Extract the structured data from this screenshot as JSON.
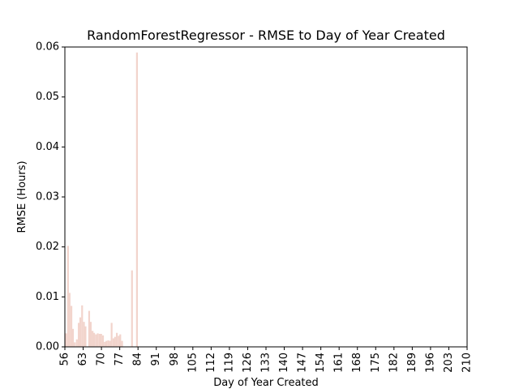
{
  "chart_data": {
    "type": "bar",
    "title": "RandomForestRegressor - RMSE to Day of Year Created",
    "xlabel": "Day of Year Created",
    "ylabel": "RMSE (Hours)",
    "xlim": [
      56,
      210
    ],
    "ylim": [
      0,
      0.06
    ],
    "x_ticks": [
      56,
      63,
      70,
      77,
      84,
      91,
      98,
      105,
      112,
      119,
      126,
      133,
      140,
      147,
      154,
      161,
      168,
      175,
      182,
      189,
      196,
      203,
      210
    ],
    "y_ticks": [
      0.0,
      0.01,
      0.02,
      0.03,
      0.04,
      0.05,
      0.06
    ],
    "y_tick_labels": [
      "0.00",
      "0.01",
      "0.02",
      "0.03",
      "0.04",
      "0.05",
      "0.06"
    ],
    "bar_color": "#f2d4cc",
    "grid": false,
    "bars": [
      {
        "x": 56.5,
        "y": 0.0027
      },
      {
        "x": 57.2,
        "y": 0.0202
      },
      {
        "x": 57.8,
        "y": 0.0108
      },
      {
        "x": 58.5,
        "y": 0.0082
      },
      {
        "x": 59.1,
        "y": 0.0036
      },
      {
        "x": 59.8,
        "y": 0.0009
      },
      {
        "x": 60.6,
        "y": 0.0015
      },
      {
        "x": 61.3,
        "y": 0.0048
      },
      {
        "x": 61.9,
        "y": 0.0059
      },
      {
        "x": 62.6,
        "y": 0.0083
      },
      {
        "x": 63.3,
        "y": 0.005
      },
      {
        "x": 63.9,
        "y": 0.0041
      },
      {
        "x": 65.3,
        "y": 0.0072
      },
      {
        "x": 65.9,
        "y": 0.005
      },
      {
        "x": 66.6,
        "y": 0.0032
      },
      {
        "x": 67.2,
        "y": 0.0028
      },
      {
        "x": 67.9,
        "y": 0.0025
      },
      {
        "x": 68.6,
        "y": 0.0027
      },
      {
        "x": 69.3,
        "y": 0.0026
      },
      {
        "x": 69.9,
        "y": 0.0026
      },
      {
        "x": 70.6,
        "y": 0.0023
      },
      {
        "x": 71.3,
        "y": 0.001
      },
      {
        "x": 71.9,
        "y": 0.0012
      },
      {
        "x": 72.6,
        "y": 0.0013
      },
      {
        "x": 73.3,
        "y": 0.0012
      },
      {
        "x": 73.9,
        "y": 0.0048
      },
      {
        "x": 74.6,
        "y": 0.0017
      },
      {
        "x": 75.2,
        "y": 0.002
      },
      {
        "x": 75.9,
        "y": 0.0028
      },
      {
        "x": 76.6,
        "y": 0.0022
      },
      {
        "x": 77.2,
        "y": 0.0025
      },
      {
        "x": 77.9,
        "y": 0.0012
      },
      {
        "x": 81.7,
        "y": 0.0153
      },
      {
        "x": 83.6,
        "y": 0.0589
      }
    ]
  }
}
